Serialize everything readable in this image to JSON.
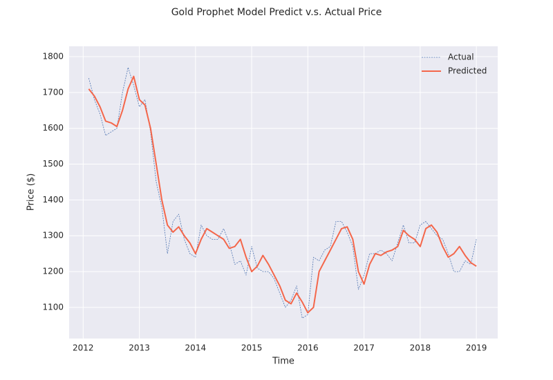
{
  "chart_data": {
    "type": "line",
    "title": "Gold Prophet Model Predict v.s. Actual Price",
    "xlabel": "Time",
    "ylabel": "Price ($)",
    "x": [
      2012.1,
      2012.2,
      2012.3,
      2012.4,
      2012.5,
      2012.6,
      2012.7,
      2012.8,
      2012.9,
      2013.0,
      2013.1,
      2013.2,
      2013.3,
      2013.4,
      2013.5,
      2013.6,
      2013.7,
      2013.8,
      2013.9,
      2014.0,
      2014.1,
      2014.2,
      2014.3,
      2014.4,
      2014.5,
      2014.6,
      2014.7,
      2014.8,
      2014.9,
      2015.0,
      2015.1,
      2015.2,
      2015.3,
      2015.4,
      2015.5,
      2015.6,
      2015.7,
      2015.8,
      2015.9,
      2016.0,
      2016.1,
      2016.2,
      2016.3,
      2016.4,
      2016.5,
      2016.6,
      2016.7,
      2016.8,
      2016.9,
      2017.0,
      2017.1,
      2017.2,
      2017.3,
      2017.4,
      2017.5,
      2017.6,
      2017.7,
      2017.8,
      2017.9,
      2018.0,
      2018.1,
      2018.2,
      2018.3,
      2018.4,
      2018.5,
      2018.6,
      2018.7,
      2018.8,
      2018.9,
      2019.0
    ],
    "series": [
      {
        "name": "Actual",
        "color": "#4c72b0",
        "style": "dashed",
        "values": [
          1740,
          1680,
          1640,
          1580,
          1590,
          1600,
          1700,
          1770,
          1720,
          1660,
          1680,
          1590,
          1450,
          1380,
          1250,
          1340,
          1360,
          1290,
          1250,
          1240,
          1330,
          1300,
          1290,
          1290,
          1320,
          1280,
          1220,
          1230,
          1190,
          1270,
          1210,
          1200,
          1200,
          1180,
          1140,
          1100,
          1120,
          1160,
          1070,
          1080,
          1240,
          1230,
          1260,
          1270,
          1340,
          1340,
          1310,
          1270,
          1150,
          1190,
          1250,
          1250,
          1260,
          1250,
          1230,
          1280,
          1330,
          1280,
          1280,
          1330,
          1340,
          1320,
          1300,
          1290,
          1250,
          1200,
          1200,
          1230,
          1220,
          1290
        ]
      },
      {
        "name": "Predicted",
        "color": "#f4664a",
        "style": "solid",
        "values": [
          1710,
          1690,
          1660,
          1620,
          1615,
          1605,
          1650,
          1710,
          1745,
          1680,
          1665,
          1600,
          1500,
          1400,
          1330,
          1310,
          1325,
          1300,
          1280,
          1250,
          1290,
          1320,
          1310,
          1300,
          1290,
          1265,
          1270,
          1290,
          1240,
          1200,
          1215,
          1245,
          1220,
          1190,
          1160,
          1120,
          1110,
          1140,
          1115,
          1085,
          1100,
          1200,
          1230,
          1260,
          1290,
          1320,
          1325,
          1290,
          1200,
          1165,
          1220,
          1250,
          1245,
          1255,
          1260,
          1270,
          1315,
          1300,
          1290,
          1270,
          1320,
          1330,
          1310,
          1270,
          1240,
          1250,
          1270,
          1245,
          1225,
          1215
        ]
      }
    ],
    "xlim": [
      2011.75,
      2019.38
    ],
    "xticks": [
      2012,
      2013,
      2014,
      2015,
      2016,
      2017,
      2018,
      2019
    ],
    "ylim": [
      1013,
      1829
    ],
    "yticks": [
      1100,
      1200,
      1300,
      1400,
      1500,
      1600,
      1700,
      1800
    ],
    "grid": true,
    "legend": "upper right"
  }
}
